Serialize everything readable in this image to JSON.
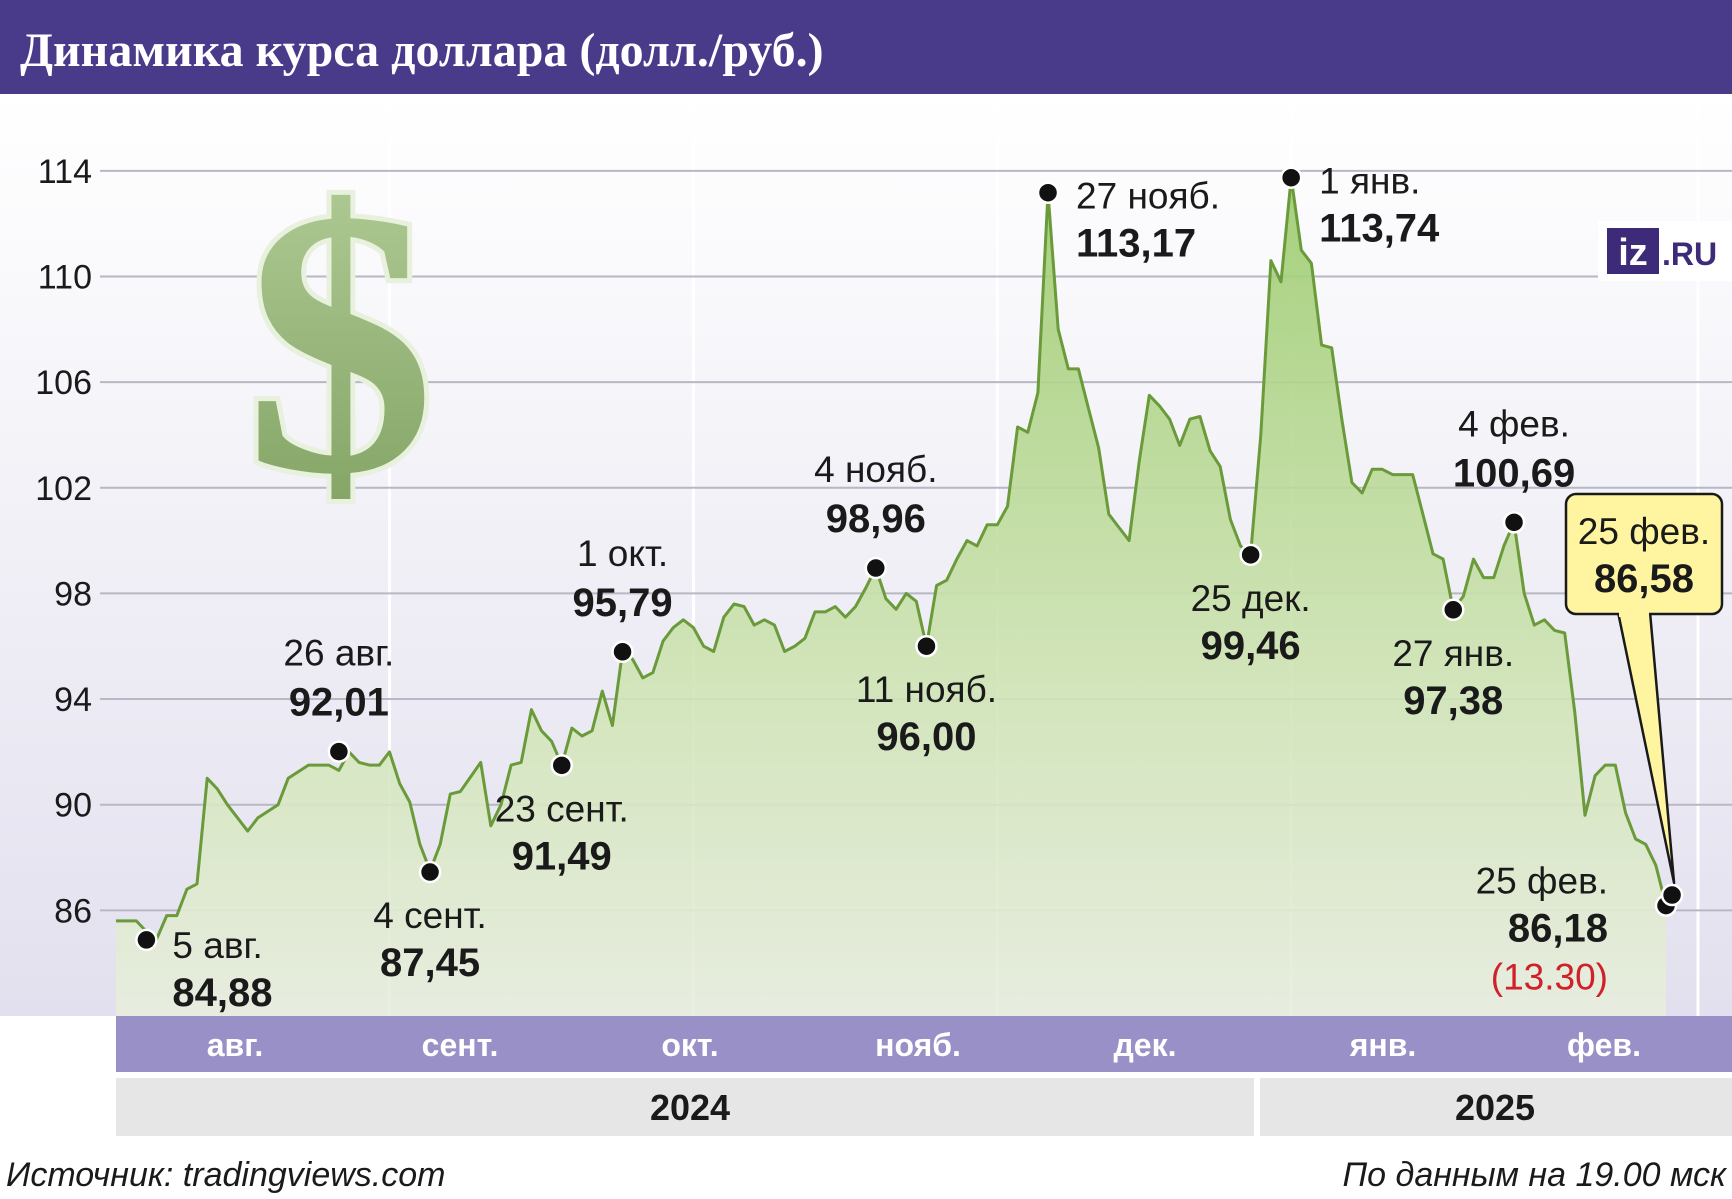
{
  "title": "Динамика курса доллара (долл./руб.)",
  "footer": {
    "source": "Источник: tradingviews.com",
    "note": "По данным на 19.00 мск"
  },
  "logo": {
    "iz": "iz",
    "ru": ".RU"
  },
  "colors": {
    "header_bg": "#4a3a8a",
    "month_band": "#9a90c8",
    "year_band": "#e6e6e6",
    "line": "#6a9a3a",
    "fill_top": "#9ccb6e",
    "callout_bg": "#fff5a0",
    "highlight_red": "#d0202a"
  },
  "chart_data": {
    "type": "area",
    "ylim": [
      82,
      116
    ],
    "yticks": [
      "86",
      "90",
      "94",
      "98",
      "102",
      "106",
      "110",
      "114"
    ],
    "x_range_days": [
      0,
      207
    ],
    "month_labels": [
      {
        "label": "авг.",
        "day": 5
      },
      {
        "label": "сент.",
        "day": 28
      },
      {
        "label": "окт.",
        "day": 57
      },
      {
        "label": "нояб.",
        "day": 87
      },
      {
        "label": "дек.",
        "day": 117
      },
      {
        "label": "янв.",
        "day": 148
      },
      {
        "label": "фев.",
        "day": 178
      }
    ],
    "year_labels": [
      {
        "label": "2024",
        "from_day": 0,
        "to_day": 150
      },
      {
        "label": "2025",
        "from_day": 150,
        "to_day": 207
      }
    ],
    "series": [
      {
        "points": [
          [
            0,
            85.6
          ],
          [
            2,
            85.6
          ],
          [
            3,
            85.2
          ],
          [
            4,
            84.9
          ],
          [
            5,
            85.8
          ],
          [
            6,
            85.8
          ],
          [
            7,
            86.8
          ],
          [
            8,
            87.0
          ],
          [
            9,
            91.0
          ],
          [
            10,
            90.6
          ],
          [
            11,
            90.0
          ],
          [
            13,
            89.0
          ],
          [
            14,
            89.5
          ],
          [
            16,
            90.0
          ],
          [
            17,
            91.0
          ],
          [
            19,
            91.5
          ],
          [
            20,
            91.5
          ],
          [
            21,
            91.5
          ],
          [
            22,
            91.3
          ],
          [
            23,
            92.0
          ],
          [
            24,
            91.6
          ],
          [
            25,
            91.5
          ],
          [
            26,
            91.5
          ],
          [
            27,
            92.0
          ],
          [
            28,
            90.8
          ],
          [
            29,
            90.1
          ],
          [
            30,
            88.5
          ],
          [
            31,
            87.5
          ],
          [
            32,
            88.5
          ],
          [
            33,
            90.4
          ],
          [
            34,
            90.5
          ],
          [
            36,
            91.6
          ],
          [
            37,
            89.2
          ],
          [
            38,
            90.0
          ],
          [
            39,
            91.5
          ],
          [
            40,
            91.6
          ],
          [
            41,
            93.6
          ],
          [
            42,
            92.8
          ],
          [
            43,
            92.4
          ],
          [
            44,
            91.5
          ],
          [
            45,
            92.9
          ],
          [
            46,
            92.6
          ],
          [
            47,
            92.8
          ],
          [
            48,
            94.3
          ],
          [
            49,
            93.0
          ],
          [
            50,
            95.8
          ],
          [
            51,
            95.5
          ],
          [
            52,
            94.8
          ],
          [
            53,
            95.0
          ],
          [
            54,
            96.2
          ],
          [
            55,
            96.7
          ],
          [
            56,
            97.0
          ],
          [
            57,
            96.7
          ],
          [
            58,
            96.0
          ],
          [
            59,
            95.8
          ],
          [
            60,
            97.1
          ],
          [
            61,
            97.6
          ],
          [
            62,
            97.5
          ],
          [
            63,
            96.8
          ],
          [
            64,
            97.0
          ],
          [
            65,
            96.8
          ],
          [
            66,
            95.8
          ],
          [
            67,
            96.0
          ],
          [
            68,
            96.3
          ],
          [
            69,
            97.3
          ],
          [
            70,
            97.3
          ],
          [
            71,
            97.5
          ],
          [
            72,
            97.1
          ],
          [
            73,
            97.5
          ],
          [
            74,
            98.2
          ],
          [
            75,
            98.96
          ],
          [
            76,
            97.8
          ],
          [
            77,
            97.4
          ],
          [
            78,
            98.0
          ],
          [
            79,
            97.7
          ],
          [
            80,
            96.0
          ],
          [
            81,
            98.3
          ],
          [
            82,
            98.5
          ],
          [
            83,
            99.3
          ],
          [
            84,
            100.0
          ],
          [
            85,
            99.8
          ],
          [
            86,
            100.6
          ],
          [
            87,
            100.6
          ],
          [
            88,
            101.3
          ],
          [
            89,
            104.3
          ],
          [
            90,
            104.1
          ],
          [
            91,
            105.6
          ],
          [
            92,
            113.17
          ],
          [
            93,
            108.0
          ],
          [
            94,
            106.5
          ],
          [
            95,
            106.5
          ],
          [
            96,
            105.0
          ],
          [
            97,
            103.5
          ],
          [
            98,
            101.0
          ],
          [
            99,
            100.5
          ],
          [
            100,
            100.0
          ],
          [
            101,
            103.0
          ],
          [
            102,
            105.5
          ],
          [
            103,
            105.1
          ],
          [
            104,
            104.6
          ],
          [
            105,
            103.6
          ],
          [
            106,
            104.6
          ],
          [
            107,
            104.7
          ],
          [
            108,
            103.4
          ],
          [
            109,
            102.8
          ],
          [
            110,
            100.8
          ],
          [
            111,
            99.8
          ],
          [
            112,
            99.46
          ],
          [
            113,
            104.0
          ],
          [
            114,
            110.6
          ],
          [
            115,
            109.8
          ],
          [
            116,
            113.74
          ],
          [
            117,
            111.0
          ],
          [
            118,
            110.5
          ],
          [
            119,
            107.4
          ],
          [
            120,
            107.3
          ],
          [
            121,
            104.6
          ],
          [
            122,
            102.2
          ],
          [
            123,
            101.8
          ],
          [
            124,
            102.7
          ],
          [
            125,
            102.7
          ],
          [
            126,
            102.5
          ],
          [
            127,
            102.5
          ],
          [
            128,
            102.5
          ],
          [
            129,
            101.0
          ],
          [
            130,
            99.5
          ],
          [
            131,
            99.3
          ],
          [
            132,
            97.38
          ],
          [
            133,
            97.9
          ],
          [
            134,
            99.3
          ],
          [
            135,
            98.6
          ],
          [
            136,
            98.6
          ],
          [
            137,
            99.8
          ],
          [
            138,
            100.69
          ],
          [
            139,
            98.0
          ],
          [
            140,
            96.8
          ],
          [
            141,
            97.0
          ],
          [
            142,
            96.6
          ],
          [
            143,
            96.5
          ],
          [
            144,
            93.5
          ],
          [
            145,
            89.6
          ],
          [
            146,
            91.1
          ],
          [
            147,
            91.5
          ],
          [
            148,
            91.5
          ],
          [
            149,
            89.7
          ],
          [
            150,
            88.7
          ],
          [
            151,
            88.5
          ],
          [
            152,
            87.7
          ],
          [
            153,
            86.18
          ]
        ]
      }
    ],
    "annotations": [
      {
        "date": "5 авг.",
        "value": "84,88",
        "day": 3,
        "y": 84.88,
        "pos": "right-below"
      },
      {
        "date": "26 авг.",
        "value": "92,01",
        "day": 22,
        "y": 92.01,
        "pos": "above"
      },
      {
        "date": "4 сент.",
        "value": "87,45",
        "day": 31,
        "y": 87.45,
        "pos": "below"
      },
      {
        "date": "23 сент.",
        "value": "91,49",
        "day": 44,
        "y": 91.49,
        "pos": "below"
      },
      {
        "date": "1 окт.",
        "value": "95,79",
        "day": 50,
        "y": 95.79,
        "pos": "above"
      },
      {
        "date": "4 нояб.",
        "value": "98,96",
        "day": 75,
        "y": 98.96,
        "pos": "above"
      },
      {
        "date": "11 нояб.",
        "value": "96,00",
        "day": 80,
        "y": 96.0,
        "pos": "below"
      },
      {
        "date": "27 нояб.",
        "value": "113,17",
        "day": 92,
        "y": 113.17,
        "pos": "right"
      },
      {
        "date": "25 дек.",
        "value": "99,46",
        "day": 112,
        "y": 99.46,
        "pos": "below"
      },
      {
        "date": "1 янв.",
        "value": "113,74",
        "day": 116,
        "y": 113.74,
        "pos": "right"
      },
      {
        "date": "27 янв.",
        "value": "97,38",
        "day": 132,
        "y": 97.38,
        "pos": "below"
      },
      {
        "date": "4 фев.",
        "value": "100,69",
        "day": 138,
        "y": 100.69,
        "pos": "above"
      },
      {
        "date": "25 фев.",
        "value": "86,18",
        "day": 153,
        "y": 86.18,
        "pos": "below-left",
        "extra": "(13.30)"
      }
    ],
    "callout": {
      "date": "25 фев.",
      "value": "86,58",
      "day": 153.6,
      "y": 86.58
    }
  }
}
